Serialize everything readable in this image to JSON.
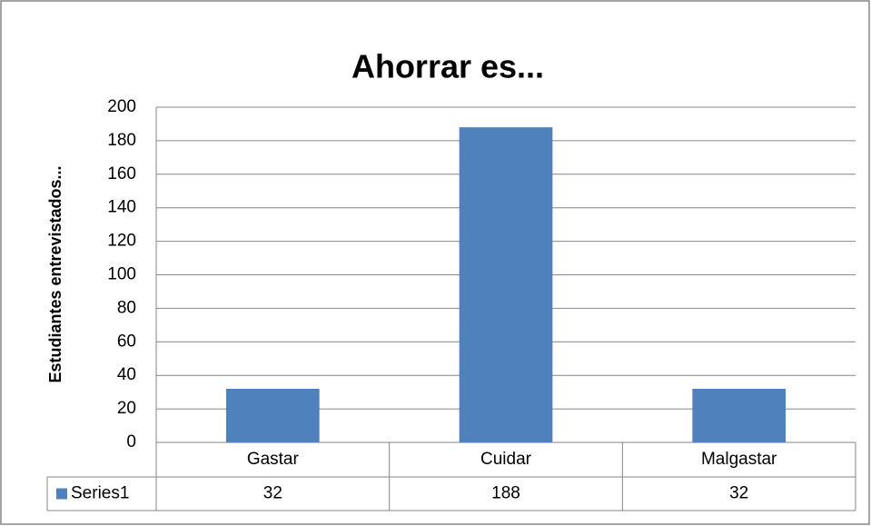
{
  "chart_data": {
    "type": "bar",
    "title": "Ahorrar es...",
    "y_label": "Estudiantes entrevistados...",
    "categories": [
      "Gastar",
      "Cuidar",
      "Malgastar"
    ],
    "series": [
      {
        "name": "Series1",
        "color": "#4f81bd",
        "values": [
          32,
          188,
          32
        ]
      }
    ],
    "ylim": [
      0,
      200
    ],
    "yticks": [
      0,
      20,
      40,
      60,
      80,
      100,
      120,
      140,
      160,
      180,
      200
    ],
    "grid": true
  }
}
